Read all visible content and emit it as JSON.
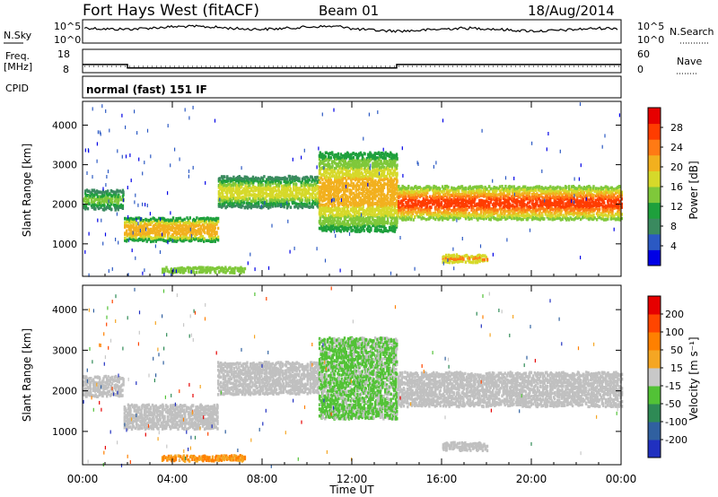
{
  "header": {
    "radar": "Fort Hays West (fitACF)",
    "beam": "Beam 01",
    "date": "18/Aug/2014"
  },
  "chart_data": [
    {
      "type": "line",
      "panel": "noise",
      "left_label": "N.Sky",
      "right_label": "N.Search",
      "left_ticks": [
        "10^5",
        "10^0"
      ],
      "right_ticks": [
        "10^5",
        "10^0"
      ],
      "note": "N.Sky drawn as dense noisy trace near the top of the panel"
    },
    {
      "type": "line",
      "panel": "frequency",
      "left_label_1": "Freq.",
      "left_label_2": "[MHz]",
      "right_label": "Nave",
      "left_ticks": [
        "18",
        "8"
      ],
      "right_ticks": [
        "60",
        "0"
      ],
      "freq_segments": [
        {
          "t0": 0.0,
          "t1": 2.0,
          "value": 11.5
        },
        {
          "t0": 2.0,
          "t1": 14.0,
          "value": 10.0
        },
        {
          "t0": 14.0,
          "t1": 24.0,
          "value": 11.5
        }
      ]
    },
    {
      "type": "text",
      "panel": "cpid",
      "label": "CPID",
      "value": "normal (fast) 151 IF"
    },
    {
      "type": "heatmap",
      "panel": "power",
      "ylabel": "Slant Range [km]",
      "ylim": [
        180,
        4600
      ],
      "yticks": [
        "1000",
        "2000",
        "3000",
        "4000"
      ],
      "ytick_values": [
        1000,
        2000,
        3000,
        4000
      ],
      "colorbar_label": "Power [dB]",
      "colorbar_ticks": [
        "4",
        "8",
        "12",
        "16",
        "20",
        "24",
        "28"
      ],
      "colorbar_colors": [
        "#0000e6",
        "#2b59c3",
        "#3a8a5f",
        "#1ea03c",
        "#7fc83a",
        "#d6d92a",
        "#f2b01e",
        "#ff7a14",
        "#ff3c00",
        "#e60000"
      ],
      "echo_bands": [
        {
          "t0": 0.0,
          "t1": 1.8,
          "r0": 1850,
          "r1": 2350,
          "intensity": 0.35
        },
        {
          "t0": 1.8,
          "t1": 6.0,
          "r0": 1050,
          "r1": 1650,
          "intensity": 0.6
        },
        {
          "t0": 6.0,
          "t1": 10.5,
          "r0": 1900,
          "r1": 2700,
          "intensity": 0.45
        },
        {
          "t0": 10.5,
          "t1": 14.0,
          "r0": 1300,
          "r1": 3300,
          "intensity": 0.55
        },
        {
          "t0": 14.0,
          "t1": 24.0,
          "r0": 1600,
          "r1": 2450,
          "intensity": 0.75
        },
        {
          "t0": 16.0,
          "t1": 18.0,
          "r0": 520,
          "r1": 720,
          "intensity": 0.65
        },
        {
          "t0": 3.5,
          "t1": 7.2,
          "r0": 260,
          "r1": 400,
          "intensity": 0.4
        }
      ]
    },
    {
      "type": "heatmap",
      "panel": "velocity",
      "ylabel": "Slant Range [km]",
      "ylim": [
        180,
        4600
      ],
      "yticks": [
        "1000",
        "2000",
        "3000",
        "4000"
      ],
      "ytick_values": [
        1000,
        2000,
        3000,
        4000
      ],
      "xlabel": "Time UT",
      "xticks": [
        "00:00",
        "04:00",
        "08:00",
        "12:00",
        "16:00",
        "20:00",
        "00:00"
      ],
      "xtick_values": [
        0,
        4,
        8,
        12,
        16,
        20,
        24
      ],
      "colorbar_label": "Velocity [m s⁻¹]",
      "colorbar_ticks": [
        "200",
        "100",
        "50",
        "15",
        "-15",
        "-50",
        "-100",
        "-200"
      ],
      "colorbar_colors": [
        "#2030c0",
        "#3060a0",
        "#2e8a55",
        "#52c236",
        "#c8c8c8",
        "#f5a623",
        "#ff8000",
        "#ff4500",
        "#e60000"
      ],
      "ground_scatter_color": "#c0c0c0",
      "echo_bands": [
        {
          "t0": 0.0,
          "t1": 1.8,
          "r0": 1850,
          "r1": 2350,
          "kind": "ground"
        },
        {
          "t0": 1.8,
          "t1": 6.0,
          "r0": 1050,
          "r1": 1650,
          "kind": "ground"
        },
        {
          "t0": 6.0,
          "t1": 10.5,
          "r0": 1900,
          "r1": 2700,
          "kind": "ground"
        },
        {
          "t0": 10.5,
          "t1": 14.0,
          "r0": 1300,
          "r1": 3300,
          "kind": "green"
        },
        {
          "t0": 14.0,
          "t1": 24.0,
          "r0": 1600,
          "r1": 2450,
          "kind": "ground"
        },
        {
          "t0": 16.0,
          "t1": 18.0,
          "r0": 520,
          "r1": 720,
          "kind": "ground"
        },
        {
          "t0": 3.5,
          "t1": 7.2,
          "r0": 260,
          "r1": 400,
          "kind": "orange"
        }
      ]
    }
  ]
}
